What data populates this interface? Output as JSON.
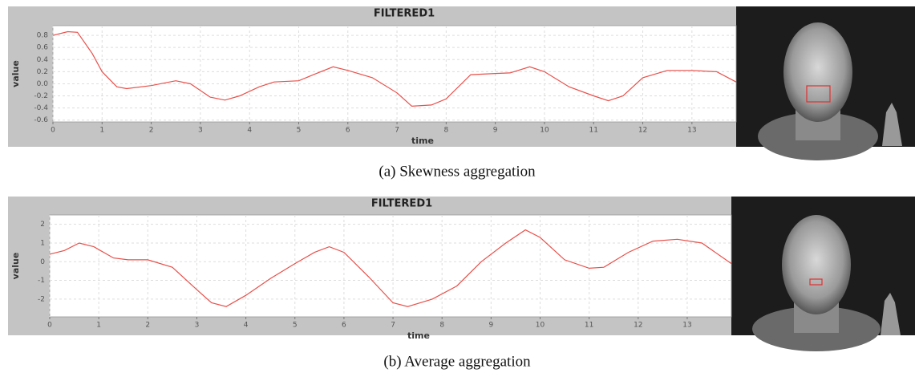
{
  "chart_data": [
    {
      "type": "line",
      "title": "FILTERED1",
      "xlabel": "time",
      "ylabel": "value",
      "series": [
        {
          "color": "#e8504a",
          "x": [
            0,
            0.3,
            0.5,
            0.8,
            1.0,
            1.3,
            1.5,
            2,
            2.5,
            2.8,
            3.2,
            3.5,
            3.8,
            4.2,
            4.5,
            5,
            5.3,
            5.7,
            6,
            6.5,
            7,
            7.3,
            7.7,
            8,
            8.5,
            9,
            9.3,
            9.7,
            10,
            10.5,
            11,
            11.3,
            11.6,
            12,
            12.5,
            13,
            13.5,
            13.9
          ],
          "values": [
            0.8,
            0.86,
            0.85,
            0.5,
            0.2,
            -0.05,
            -0.08,
            -0.03,
            0.05,
            0.0,
            -0.22,
            -0.27,
            -0.2,
            -0.05,
            0.03,
            0.05,
            0.15,
            0.28,
            0.22,
            0.1,
            -0.15,
            -0.37,
            -0.35,
            -0.25,
            0.15,
            0.17,
            0.18,
            0.28,
            0.2,
            -0.05,
            -0.2,
            -0.28,
            -0.2,
            0.1,
            0.22,
            0.22,
            0.2,
            0.03
          ]
        }
      ],
      "xlim": [
        0,
        13.9
      ],
      "xticks": [
        0,
        1,
        2,
        3,
        4,
        5,
        6,
        7,
        8,
        9,
        10,
        11,
        12,
        13
      ],
      "ylim": [
        -0.63,
        0.96
      ],
      "yticks": [
        -0.6,
        -0.4,
        -0.2,
        {
          "value": 0,
          "label": "0.0"
        },
        0.2,
        0.4,
        0.6,
        0.8
      ],
      "grid": true
    },
    {
      "type": "line",
      "title": "FILTERED1",
      "xlabel": "time",
      "ylabel": "value",
      "series": [
        {
          "color": "#e8504a",
          "x": [
            0,
            0.3,
            0.6,
            0.9,
            1.3,
            1.6,
            2.0,
            2.5,
            3,
            3.3,
            3.6,
            4,
            4.5,
            5,
            5.4,
            5.7,
            6,
            6.5,
            7,
            7.3,
            7.8,
            8.3,
            8.8,
            9.3,
            9.7,
            10,
            10.5,
            11,
            11.3,
            11.8,
            12.3,
            12.8,
            13.3,
            13.9
          ],
          "values": [
            0.4,
            0.6,
            1.0,
            0.8,
            0.2,
            0.1,
            0.1,
            -0.3,
            -1.5,
            -2.2,
            -2.4,
            -1.8,
            -0.9,
            -0.1,
            0.5,
            0.8,
            0.5,
            -0.8,
            -2.2,
            -2.4,
            -2.0,
            -1.3,
            0.0,
            1.0,
            1.7,
            1.3,
            0.1,
            -0.35,
            -0.3,
            0.5,
            1.1,
            1.2,
            1.0,
            -0.1
          ]
        }
      ],
      "xlim": [
        0,
        13.9
      ],
      "xticks": [
        0,
        1,
        2,
        3,
        4,
        5,
        6,
        7,
        8,
        9,
        10,
        11,
        12,
        13
      ],
      "ylim": [
        -2.95,
        2.5
      ],
      "yticks": [
        -2,
        -1,
        0,
        1,
        2
      ],
      "grid": true
    }
  ],
  "captions": [
    "(a) Skewness aggregation",
    "(b) Average aggregation"
  ]
}
